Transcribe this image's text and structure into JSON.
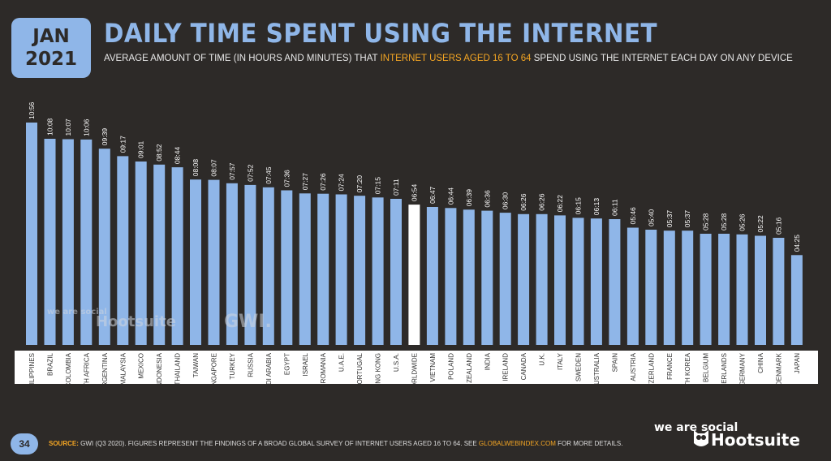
{
  "badge": {
    "month": "JAN",
    "year": "2021"
  },
  "title": "DAILY TIME SPENT USING THE INTERNET",
  "subtitle": {
    "before": "AVERAGE AMOUNT OF TIME (IN HOURS AND MINUTES) THAT ",
    "highlight": "INTERNET USERS AGED 16 TO 64",
    "after": " SPEND USING THE INTERNET EACH DAY ON ANY DEVICE"
  },
  "colors": {
    "background": "#2d2a28",
    "accent": "#8fb6e8",
    "highlight": "#f5a623",
    "bar": "#8fb6e8",
    "bar_highlight": "#ffffff",
    "panel": "#ffffff"
  },
  "watermarks": {
    "we_are_social": "we are social",
    "hootsuite": "Hootsuite",
    "gwi": "GWI."
  },
  "chart_data": {
    "type": "bar",
    "categories": [
      "PHILIPPINES",
      "BRAZIL",
      "COLOMBIA",
      "SOUTH AFRICA",
      "ARGENTINA",
      "MALAYSIA",
      "MEXICO",
      "INDONESIA",
      "THAILAND",
      "TAIWAN",
      "SINGAPORE",
      "TURKEY",
      "RUSSIA",
      "SAUDI ARABIA",
      "EGYPT",
      "ISRAEL",
      "ROMANIA",
      "U.A.E.",
      "PORTUGAL",
      "HONG KONG",
      "U.S.A.",
      "WORLDWIDE",
      "VIETNAM",
      "POLAND",
      "NEW ZEALAND",
      "INDIA",
      "IRELAND",
      "CANADA",
      "U.K.",
      "ITALY",
      "SWEDEN",
      "AUSTRALIA",
      "SPAIN",
      "AUSTRIA",
      "SWITZERLAND",
      "FRANCE",
      "SOUTH KOREA",
      "BELGIUM",
      "NETHERLANDS",
      "GERMANY",
      "CHINA",
      "DENMARK",
      "JAPAN"
    ],
    "labels": [
      "10:56",
      "10:08",
      "10:07",
      "10:06",
      "09:39",
      "09:17",
      "09:01",
      "08:52",
      "08:44",
      "08:08",
      "08:07",
      "07:57",
      "07:52",
      "07:45",
      "07:36",
      "07:27",
      "07:26",
      "07:24",
      "07:20",
      "07:15",
      "07:11",
      "06:54",
      "06:47",
      "06:44",
      "06:39",
      "06:36",
      "06:30",
      "06:26",
      "06:26",
      "06:22",
      "06:15",
      "06:13",
      "06:11",
      "05:46",
      "05:40",
      "05:37",
      "05:37",
      "05:28",
      "05:28",
      "05:26",
      "05:22",
      "05:16",
      "04:25"
    ],
    "values_minutes": [
      656,
      608,
      607,
      606,
      579,
      557,
      541,
      532,
      524,
      488,
      487,
      477,
      472,
      465,
      456,
      447,
      446,
      444,
      440,
      435,
      431,
      414,
      407,
      404,
      399,
      396,
      390,
      386,
      386,
      382,
      375,
      373,
      371,
      346,
      340,
      337,
      337,
      328,
      328,
      326,
      322,
      316,
      265
    ],
    "highlight_category": "WORLDWIDE",
    "ylim": [
      0,
      656
    ],
    "grid": false
  },
  "footer": {
    "page_number": "34",
    "source_label": "SOURCE:",
    "source_text": " GWI (Q3 2020). FIGURES REPRESENT THE FINDINGS OF A BROAD GLOBAL SURVEY OF INTERNET USERS AGED 16 TO 64. SEE ",
    "source_link": "GLOBALWEBINDEX.COM",
    "source_after": " FOR MORE DETAILS.",
    "logo_we_are_social": "we are social",
    "logo_hootsuite": "Hootsuite"
  }
}
